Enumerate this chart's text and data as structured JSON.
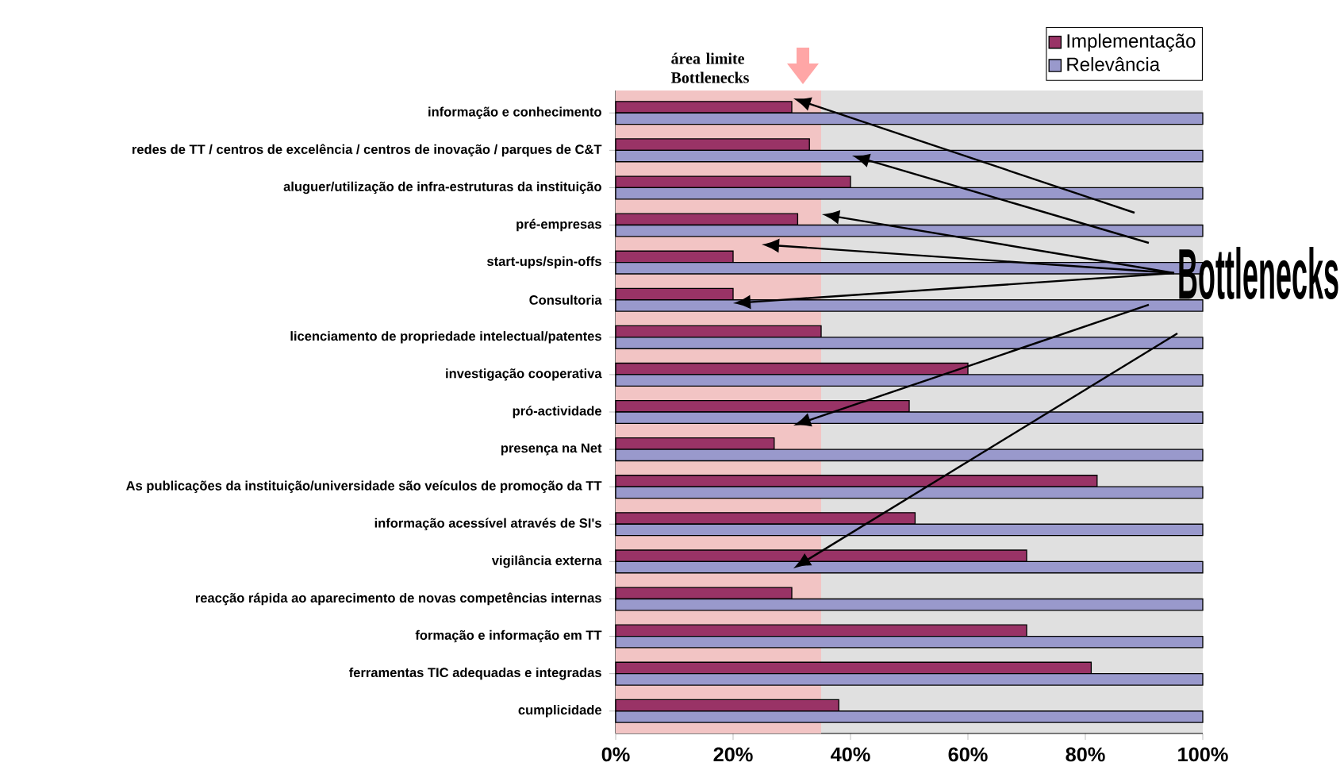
{
  "chart_data": {
    "type": "bar",
    "orientation": "horizontal",
    "categories": [
      "informação e conhecimento",
      "redes de TT / centros de excelência / centros de inovação / parques de C&T",
      "aluguer/utilização de infra-estruturas da instituição",
      "pré-empresas",
      "start-ups/spin-offs",
      "Consultoria",
      "licenciamento de propriedade intelectual/patentes",
      "investigação cooperativa",
      "pró-actividade",
      "presença na Net",
      "As publicações da instituição/universidade são veículos de promoção da TT",
      "informação acessível através de SI's",
      "vigilância externa",
      "reacção rápida ao aparecimento de novas competências internas",
      "formação e informação em TT",
      "ferramentas TIC adequadas e integradas",
      "cumplicidade"
    ],
    "series": [
      {
        "name": "Implementação",
        "color": "#993366",
        "values": [
          30,
          33,
          40,
          31,
          20,
          20,
          35,
          60,
          50,
          27,
          82,
          51,
          70,
          30,
          70,
          81,
          38
        ]
      },
      {
        "name": "Relevância",
        "color": "#9999cc",
        "values": [
          100,
          100,
          100,
          100,
          100,
          100,
          100,
          100,
          100,
          100,
          100,
          100,
          100,
          100,
          100,
          100,
          100
        ]
      }
    ],
    "xlim": [
      0,
      100
    ],
    "xticks": [
      {
        "value": 0,
        "label": "0%"
      },
      {
        "value": 20,
        "label": "20%"
      },
      {
        "value": 40,
        "label": "40%"
      },
      {
        "value": 60,
        "label": "60%"
      },
      {
        "value": 80,
        "label": "80%"
      },
      {
        "value": 100,
        "label": "100%"
      }
    ],
    "bands": [
      {
        "axis": "x",
        "from": 0,
        "to": 35,
        "label": "área limite Bottlenecks",
        "color": "#f2c4c4"
      }
    ],
    "annotations": [
      "Bottlenecks"
    ],
    "legend": "top right"
  }
}
